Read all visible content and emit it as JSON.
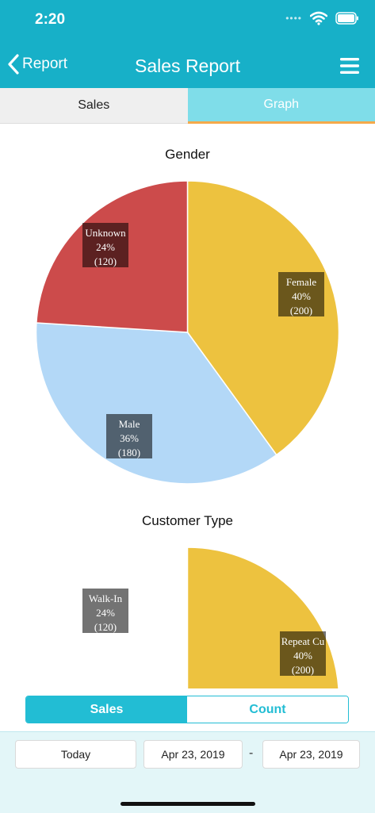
{
  "status_bar": {
    "time": "2:20",
    "signal": "••••"
  },
  "nav": {
    "back_label": "Report",
    "title": "Sales Report"
  },
  "tabs": [
    {
      "label": "Sales",
      "active": false
    },
    {
      "label": "Graph",
      "active": true
    }
  ],
  "colors": {
    "header": "#17b0c8",
    "tab_active": "#7fdde9",
    "tab_indicator": "#f5a94a",
    "accent": "#22bdd4"
  },
  "icons": {
    "back": "chevron-left-icon",
    "menu": "hamburger-menu-icon",
    "wifi": "wifi-icon",
    "battery": "battery-icon"
  },
  "chart_data": [
    {
      "type": "pie",
      "title": "Gender",
      "slices": [
        {
          "label": "Female",
          "percent": "40%",
          "value": 200,
          "color": "#edc23f"
        },
        {
          "label": "Male",
          "percent": "36%",
          "value": 180,
          "color": "#b3d8f7"
        },
        {
          "label": "Unknown",
          "percent": "24%",
          "value": 120,
          "color": "#cc4b4b"
        }
      ]
    },
    {
      "type": "pie",
      "title": "Customer Type",
      "slices": [
        {
          "label": "Repeat Cu",
          "percent": "40%",
          "value": 200,
          "color": "#edc23f"
        },
        {
          "label": "Walk-In",
          "percent": "24%",
          "value": 120,
          "color": "#cc4b4b"
        }
      ]
    }
  ],
  "bottom_toggle": {
    "sales_label": "Sales",
    "count_label": "Count",
    "selected": "Sales"
  },
  "footer": {
    "today_label": "Today",
    "start_date": "Apr 23, 2019",
    "separator": "-",
    "end_date": "Apr 23, 2019"
  }
}
